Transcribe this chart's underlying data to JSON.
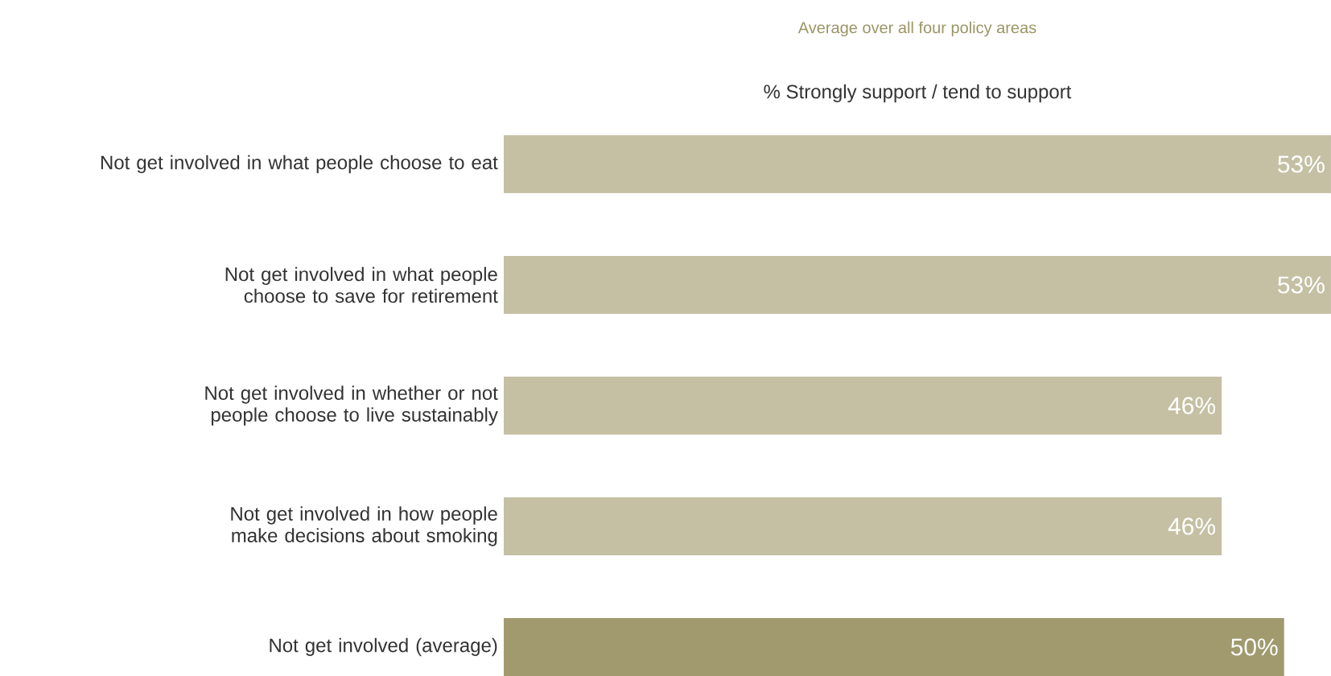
{
  "chart_data": {
    "type": "bar",
    "orientation": "horizontal",
    "title": "Average over all four policy areas",
    "subtitle": "% Strongly support / tend to support",
    "categories": [
      "Not get involved in what people choose to eat",
      "Not get involved in what people choose to save for retirement",
      "Not get involved in whether or not people choose to live sustainably",
      "Not get involved in how people make decisions about smoking",
      "Not get involved (average)"
    ],
    "values": [
      53,
      53,
      46,
      46,
      50
    ],
    "value_labels": [
      "53%",
      "53%",
      "46%",
      "46%",
      "50%"
    ],
    "colors": [
      "#c5c0a4",
      "#c5c0a4",
      "#c5c0a4",
      "#c5c0a4",
      "#a09a6e"
    ]
  }
}
